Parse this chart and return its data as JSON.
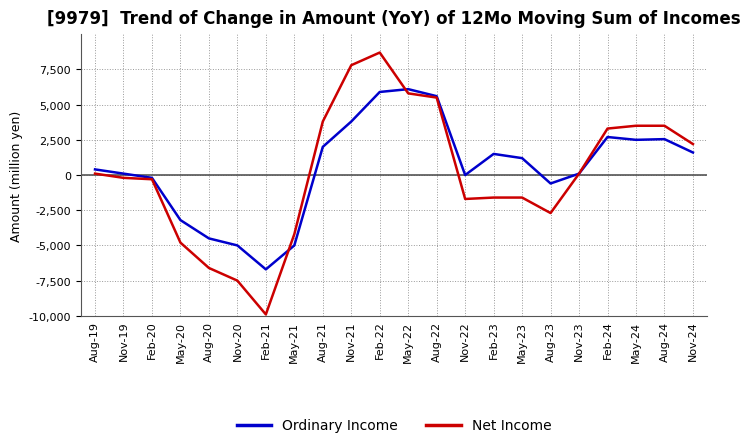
{
  "title": "[9979]  Trend of Change in Amount (YoY) of 12Mo Moving Sum of Incomes",
  "ylabel": "Amount (million yen)",
  "x_labels": [
    "Aug-19",
    "Nov-19",
    "Feb-20",
    "May-20",
    "Aug-20",
    "Nov-20",
    "Feb-21",
    "May-21",
    "Aug-21",
    "Nov-21",
    "Feb-22",
    "May-22",
    "Aug-22",
    "Nov-22",
    "Feb-23",
    "May-23",
    "Aug-23",
    "Nov-23",
    "Feb-24",
    "May-24",
    "Aug-24",
    "Nov-24"
  ],
  "ordinary_income": [
    400,
    100,
    -200,
    -3200,
    -4500,
    -5000,
    -6700,
    -5000,
    2000,
    3800,
    5900,
    6100,
    5600,
    0,
    1500,
    1200,
    -600,
    100,
    2700,
    2500,
    2550,
    1600
  ],
  "net_income": [
    100,
    -200,
    -300,
    -4800,
    -6600,
    -7500,
    -9900,
    -4200,
    3800,
    7800,
    8700,
    5800,
    5500,
    -1700,
    -1600,
    -1600,
    -2700,
    100,
    3300,
    3500,
    3500,
    2200
  ],
  "ordinary_color": "#0000cc",
  "net_color": "#cc0000",
  "ylim": [
    -10000,
    10000
  ],
  "yticks": [
    -10000,
    -7500,
    -5000,
    -2500,
    0,
    2500,
    5000,
    7500
  ],
  "background_color": "#ffffff",
  "grid_color": "#999999",
  "title_fontsize": 12,
  "axis_fontsize": 9,
  "tick_fontsize": 8,
  "legend_fontsize": 10,
  "line_width": 1.8
}
